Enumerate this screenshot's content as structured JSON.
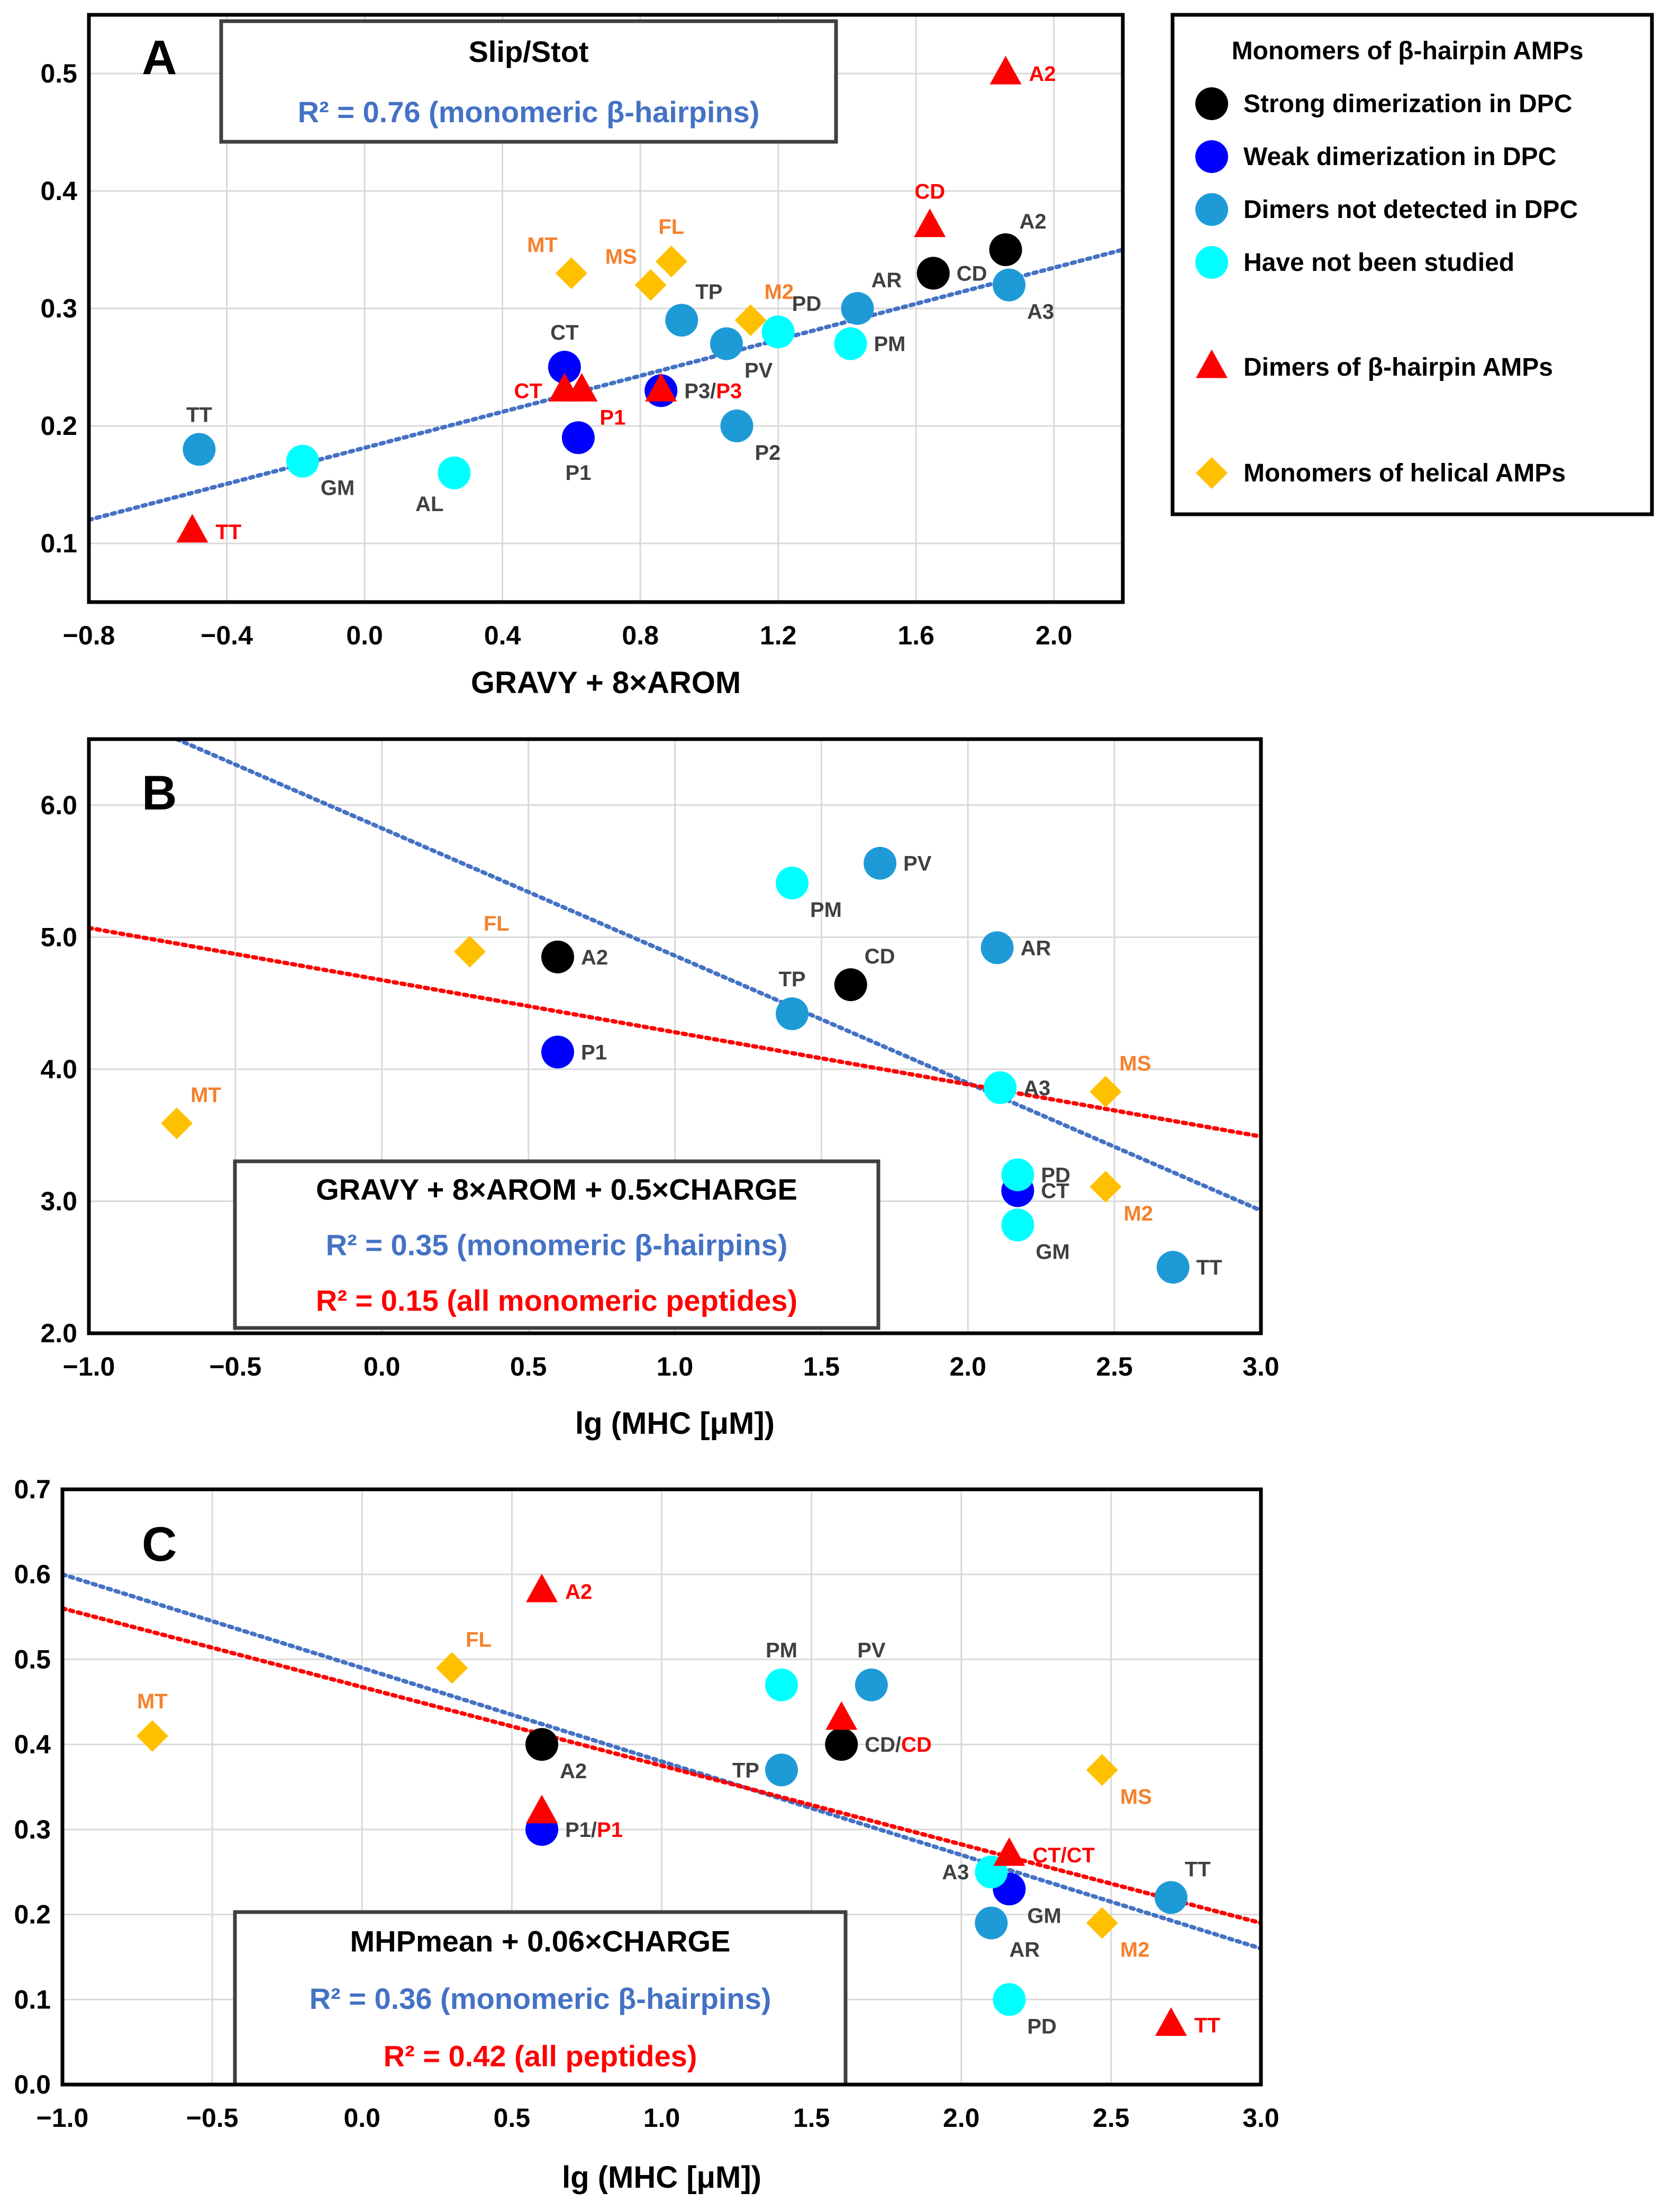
{
  "colors": {
    "strong": "#000000",
    "weak": "#0000ff",
    "not_detected": "#1e9bd7",
    "not_studied": "#00ffff",
    "dimer": "#ff0000",
    "helical": "#ffc000",
    "helical_label": "#f4812d",
    "label_gray": "#404040",
    "trend_blue": "#4472c4",
    "trend_red": "#ff0000",
    "grid": "#d9d9d9"
  },
  "legend": {
    "title": "Monomers of β-hairpin AMPs",
    "items": [
      {
        "key": "strong",
        "marker": "circle",
        "label": "Strong dimerization in DPC"
      },
      {
        "key": "weak",
        "marker": "circle",
        "label": "Weak dimerization in DPC"
      },
      {
        "key": "not_detected",
        "marker": "circle",
        "label": "Dimers not detected in DPC"
      },
      {
        "key": "not_studied",
        "marker": "circle",
        "label": "Have not been studied"
      },
      {
        "key": "dimer",
        "marker": "triangle",
        "label": "Dimers of β-hairpin AMPs"
      },
      {
        "key": "helical",
        "marker": "diamond",
        "label": "Monomers of helical AMPs"
      }
    ]
  },
  "chart_data": [
    {
      "panel": "A",
      "type": "scatter",
      "xlabel": "GRAVY + 8×AROM",
      "xlim": [
        -0.8,
        2.2
      ],
      "ylim": [
        0.05,
        0.55
      ],
      "xticks": [
        -0.8,
        -0.4,
        0.0,
        0.4,
        0.8,
        1.2,
        1.6,
        2.0
      ],
      "yticks": [
        0.1,
        0.2,
        0.3,
        0.4,
        0.5
      ],
      "xtick_labels": [
        "−0.8",
        "−0.4",
        "0.0",
        "0.4",
        "0.8",
        "1.2",
        "1.6",
        "2.0"
      ],
      "ytick_labels": [
        "0.1",
        "0.2",
        "0.3",
        "0.4",
        "0.5"
      ],
      "grid": true,
      "annotation": {
        "title": "Slip/Stot",
        "r2_blue": "R² = 0.76 (monomeric β-hairpins)"
      },
      "trendlines": [
        {
          "color": "trend_blue",
          "x": [
            -0.8,
            2.2
          ],
          "y": [
            0.12,
            0.35
          ]
        }
      ],
      "points": [
        {
          "x": -0.48,
          "y": 0.18,
          "group": "not_detected",
          "label": "TT",
          "pos": "above"
        },
        {
          "x": -0.18,
          "y": 0.17,
          "group": "not_studied",
          "label": "GM",
          "pos": "below-right"
        },
        {
          "x": 0.26,
          "y": 0.16,
          "group": "not_studied",
          "label": "AL",
          "pos": "below-left"
        },
        {
          "x": 0.58,
          "y": 0.25,
          "group": "weak",
          "label": "CT",
          "pos": "above"
        },
        {
          "x": 0.62,
          "y": 0.19,
          "group": "weak",
          "label": "P1",
          "pos": "below"
        },
        {
          "x": 0.86,
          "y": 0.23,
          "group": "weak",
          "label": "P3/",
          "label2": "P3",
          "pos": "right"
        },
        {
          "x": 0.92,
          "y": 0.29,
          "group": "not_detected",
          "label": "TP",
          "pos": "above-right"
        },
        {
          "x": 1.05,
          "y": 0.27,
          "group": "not_detected",
          "label": "PV",
          "pos": "below-right"
        },
        {
          "x": 1.08,
          "y": 0.2,
          "group": "not_detected",
          "label": "P2",
          "pos": "below-right"
        },
        {
          "x": 1.2,
          "y": 0.28,
          "group": "not_studied",
          "label": "PD",
          "pos": "above-right"
        },
        {
          "x": 1.41,
          "y": 0.27,
          "group": "not_studied",
          "label": "PM",
          "pos": "right"
        },
        {
          "x": 1.43,
          "y": 0.3,
          "group": "not_detected",
          "label": "AR",
          "pos": "above-right"
        },
        {
          "x": 1.65,
          "y": 0.33,
          "group": "strong",
          "label": "CD",
          "pos": "right"
        },
        {
          "x": 1.86,
          "y": 0.35,
          "group": "strong",
          "label": "A2",
          "pos": "above-right"
        },
        {
          "x": 1.87,
          "y": 0.32,
          "group": "not_detected",
          "label": "A3",
          "pos": "below-right"
        },
        {
          "x": -0.5,
          "y": 0.11,
          "group": "dimer",
          "label": "TT",
          "pos": "right"
        },
        {
          "x": 0.58,
          "y": 0.23,
          "group": "dimer",
          "label": "CT",
          "pos": "left"
        },
        {
          "x": 0.63,
          "y": 0.23,
          "group": "dimer",
          "label": "P1",
          "pos": "below-right"
        },
        {
          "x": 0.86,
          "y": 0.23,
          "group": "dimer",
          "label": "",
          "pos": "none"
        },
        {
          "x": 1.64,
          "y": 0.37,
          "group": "dimer",
          "label": "CD",
          "pos": "above"
        },
        {
          "x": 1.86,
          "y": 0.5,
          "group": "dimer",
          "label": "A2",
          "pos": "right"
        },
        {
          "x": 0.6,
          "y": 0.33,
          "group": "helical",
          "label": "MT",
          "pos": "above-left"
        },
        {
          "x": 0.83,
          "y": 0.32,
          "group": "helical",
          "label": "MS",
          "pos": "above-left"
        },
        {
          "x": 0.89,
          "y": 0.34,
          "group": "helical",
          "label": "FL",
          "pos": "above"
        },
        {
          "x": 1.12,
          "y": 0.29,
          "group": "helical",
          "label": "M2",
          "pos": "above-right"
        }
      ]
    },
    {
      "panel": "B",
      "type": "scatter",
      "xlabel": "lg (MHC [μM])",
      "xlim": [
        -1.0,
        3.0
      ],
      "ylim": [
        2.0,
        6.5
      ],
      "xticks": [
        -1.0,
        -0.5,
        0.0,
        0.5,
        1.0,
        1.5,
        2.0,
        2.5,
        3.0
      ],
      "yticks": [
        2.0,
        3.0,
        4.0,
        5.0,
        6.0
      ],
      "xtick_labels": [
        "−1.0",
        "−0.5",
        "0.0",
        "0.5",
        "1.0",
        "1.5",
        "2.0",
        "2.5",
        "3.0"
      ],
      "ytick_labels": [
        "2.0",
        "3.0",
        "4.0",
        "5.0",
        "6.0"
      ],
      "grid": true,
      "annotation": {
        "title": "GRAVY + 8×AROM + 0.5×CHARGE",
        "r2_blue": "R² = 0.35 (monomeric β-hairpins)",
        "r2_red": "R² = 0.15 (all monomeric peptides)"
      },
      "trendlines": [
        {
          "color": "trend_blue",
          "x": [
            -0.7,
            3.0
          ],
          "y": [
            6.5,
            2.93
          ]
        },
        {
          "color": "trend_red",
          "x": [
            -1.0,
            3.0
          ],
          "y": [
            5.07,
            3.49
          ]
        }
      ],
      "points": [
        {
          "x": 0.6,
          "y": 4.85,
          "group": "strong",
          "label": "A2",
          "pos": "right"
        },
        {
          "x": 1.6,
          "y": 4.64,
          "group": "strong",
          "label": "CD",
          "pos": "above-right"
        },
        {
          "x": 0.6,
          "y": 4.13,
          "group": "weak",
          "label": "P1",
          "pos": "right"
        },
        {
          "x": 2.17,
          "y": 3.08,
          "group": "weak",
          "label": "CT",
          "pos": "right"
        },
        {
          "x": 1.4,
          "y": 4.42,
          "group": "not_detected",
          "label": "TP",
          "pos": "above"
        },
        {
          "x": 1.7,
          "y": 5.56,
          "group": "not_detected",
          "label": "PV",
          "pos": "right"
        },
        {
          "x": 2.1,
          "y": 4.92,
          "group": "not_detected",
          "label": "AR",
          "pos": "right"
        },
        {
          "x": 2.7,
          "y": 2.5,
          "group": "not_detected",
          "label": "TT",
          "pos": "right"
        },
        {
          "x": 1.4,
          "y": 5.41,
          "group": "not_studied",
          "label": "PM",
          "pos": "below-right"
        },
        {
          "x": 2.11,
          "y": 3.86,
          "group": "not_studied",
          "label": "A3",
          "pos": "right"
        },
        {
          "x": 2.17,
          "y": 3.2,
          "group": "not_studied",
          "label": "PD",
          "pos": "right"
        },
        {
          "x": 2.17,
          "y": 2.82,
          "group": "not_studied",
          "label": "GM",
          "pos": "below-right"
        },
        {
          "x": -0.7,
          "y": 3.59,
          "group": "helical",
          "label": "MT",
          "pos": "above-right"
        },
        {
          "x": 0.3,
          "y": 4.89,
          "group": "helical",
          "label": "FL",
          "pos": "above-right"
        },
        {
          "x": 2.47,
          "y": 3.83,
          "group": "helical",
          "label": "MS",
          "pos": "above-right"
        },
        {
          "x": 2.47,
          "y": 3.11,
          "group": "helical",
          "label": "M2",
          "pos": "below-right"
        }
      ]
    },
    {
      "panel": "C",
      "type": "scatter",
      "xlabel": "lg (MHC [μM])",
      "xlim": [
        -1.0,
        3.0
      ],
      "ylim": [
        0.0,
        0.7
      ],
      "xticks": [
        -1.0,
        -0.5,
        0.0,
        0.5,
        1.0,
        1.5,
        2.0,
        2.5,
        3.0
      ],
      "yticks": [
        0.0,
        0.1,
        0.2,
        0.3,
        0.4,
        0.5,
        0.6,
        0.7
      ],
      "xtick_labels": [
        "−1.0",
        "−0.5",
        "0.0",
        "0.5",
        "1.0",
        "1.5",
        "2.0",
        "2.5",
        "3.0"
      ],
      "ytick_labels": [
        "0.0",
        "0.1",
        "0.2",
        "0.3",
        "0.4",
        "0.5",
        "0.6",
        "0.7"
      ],
      "grid": true,
      "annotation": {
        "title": "MHPmean + 0.06×CHARGE",
        "r2_blue": "R² = 0.36 (monomeric β-hairpins)",
        "r2_red": "R² = 0.42 (all peptides)"
      },
      "trendlines": [
        {
          "color": "trend_blue",
          "x": [
            -1.0,
            3.0
          ],
          "y": [
            0.6,
            0.16
          ]
        },
        {
          "color": "trend_red",
          "x": [
            -1.0,
            3.0
          ],
          "y": [
            0.56,
            0.19
          ]
        }
      ],
      "points": [
        {
          "x": 0.6,
          "y": 0.4,
          "group": "strong",
          "label": "A2",
          "pos": "below-right"
        },
        {
          "x": 1.6,
          "y": 0.4,
          "group": "strong",
          "label": "CD/",
          "label2": "CD",
          "pos": "right"
        },
        {
          "x": 0.6,
          "y": 0.3,
          "group": "weak",
          "label": "P1/",
          "label2": "P1",
          "pos": "right"
        },
        {
          "x": 2.16,
          "y": 0.23,
          "group": "weak",
          "label": "GM",
          "pos": "below-right"
        },
        {
          "x": 1.4,
          "y": 0.37,
          "group": "not_detected",
          "label": "TP",
          "pos": "left"
        },
        {
          "x": 1.7,
          "y": 0.47,
          "group": "not_detected",
          "label": "PV",
          "pos": "above"
        },
        {
          "x": 2.1,
          "y": 0.19,
          "group": "not_detected",
          "label": "AR",
          "pos": "below-right"
        },
        {
          "x": 2.7,
          "y": 0.22,
          "group": "not_detected",
          "label": "TT",
          "pos": "above-right"
        },
        {
          "x": 1.4,
          "y": 0.47,
          "group": "not_studied",
          "label": "PM",
          "pos": "above"
        },
        {
          "x": 2.1,
          "y": 0.25,
          "group": "not_studied",
          "label": "A3",
          "pos": "left"
        },
        {
          "x": 2.16,
          "y": 0.1,
          "group": "not_studied",
          "label": "PD",
          "pos": "below-right"
        },
        {
          "x": 0.6,
          "y": 0.58,
          "group": "dimer",
          "label": "A2",
          "pos": "right"
        },
        {
          "x": 0.6,
          "y": 0.32,
          "group": "dimer",
          "label": "",
          "pos": "none"
        },
        {
          "x": 1.6,
          "y": 0.43,
          "group": "dimer",
          "label": "",
          "pos": "none"
        },
        {
          "x": 2.16,
          "y": 0.27,
          "group": "dimer",
          "label": "CT/",
          "label2": "CT",
          "pos": "right"
        },
        {
          "x": 2.7,
          "y": 0.07,
          "group": "dimer",
          "label": "TT",
          "pos": "right"
        },
        {
          "x": -0.7,
          "y": 0.41,
          "group": "helical",
          "label": "MT",
          "pos": "above"
        },
        {
          "x": 0.3,
          "y": 0.49,
          "group": "helical",
          "label": "FL",
          "pos": "above-right"
        },
        {
          "x": 2.47,
          "y": 0.37,
          "group": "helical",
          "label": "MS",
          "pos": "below-right"
        },
        {
          "x": 2.47,
          "y": 0.19,
          "group": "helical",
          "label": "M2",
          "pos": "below-right"
        }
      ]
    }
  ]
}
